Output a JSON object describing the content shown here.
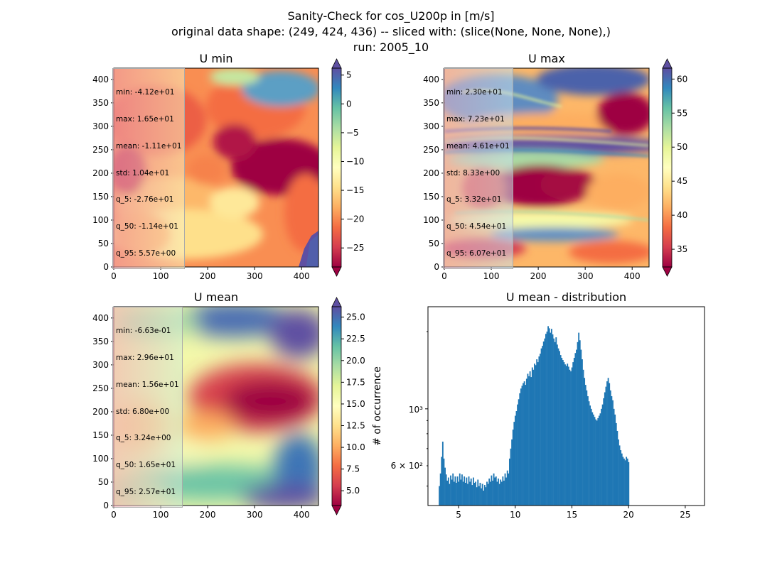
{
  "figure": {
    "suptitle_lines": [
      "Sanity-Check for cos_U200p in [m/s]",
      "original data shape: (249, 424, 436) -- sliced with: (slice(None, None, None),)",
      "run: 2005_10"
    ]
  },
  "chart_data": [
    {
      "type": "heatmap",
      "title": "U min",
      "x_ticks": [
        0,
        100,
        200,
        300,
        400
      ],
      "y_ticks": [
        0,
        50,
        100,
        150,
        200,
        250,
        300,
        350,
        400
      ],
      "xlim": [
        0,
        436
      ],
      "ylim": [
        0,
        424
      ],
      "colormap": "Spectral",
      "colorbar": {
        "range": [
          -28.3,
          6.2
        ],
        "ticks": [
          -25,
          -20,
          -15,
          -10,
          -5,
          0,
          5
        ],
        "tick_labels": [
          "−25",
          "−20",
          "−15",
          "−10",
          "−5",
          "0",
          "5"
        ],
        "extend": "both"
      },
      "stats": [
        "min: -4.12e+01",
        "max: 1.65e+01",
        "mean: -1.11e+01",
        "std: 1.04e+01",
        "q_5: -2.76e+01",
        "q_50: -1.14e+01",
        "q_95: 5.57e+00"
      ]
    },
    {
      "type": "heatmap",
      "title": "U max",
      "x_ticks": [
        0,
        100,
        200,
        300,
        400
      ],
      "y_ticks": [
        0,
        50,
        100,
        150,
        200,
        250,
        300,
        350,
        400
      ],
      "xlim": [
        0,
        436
      ],
      "ylim": [
        0,
        424
      ],
      "colormap": "Spectral",
      "colorbar": {
        "range": [
          32.4,
          61.6
        ],
        "ticks": [
          35,
          40,
          45,
          50,
          55,
          60
        ],
        "tick_labels": [
          "35",
          "40",
          "45",
          "50",
          "55",
          "60"
        ],
        "extend": "both"
      },
      "stats": [
        "min: 2.30e+01",
        "max: 7.23e+01",
        "mean: 4.61e+01",
        "std: 8.33e+00",
        "q_5: 3.32e+01",
        "q_50: 4.54e+01",
        "q_95: 6.07e+01"
      ]
    },
    {
      "type": "heatmap",
      "title": "U mean",
      "x_ticks": [
        0,
        100,
        200,
        300,
        400
      ],
      "y_ticks": [
        0,
        50,
        100,
        150,
        200,
        250,
        300,
        350,
        400
      ],
      "xlim": [
        0,
        436
      ],
      "ylim": [
        0,
        424
      ],
      "colormap": "Spectral",
      "colorbar": {
        "range": [
          3.3,
          26.2
        ],
        "ticks": [
          5.0,
          7.5,
          10.0,
          12.5,
          15.0,
          17.5,
          20.0,
          22.5,
          25.0
        ],
        "tick_labels": [
          "5.0",
          "7.5",
          "10.0",
          "12.5",
          "15.0",
          "17.5",
          "20.0",
          "22.5",
          "25.0"
        ],
        "extend": "both"
      },
      "stats": [
        "min: -6.63e-01",
        "max: 2.96e+01",
        "mean: 1.56e+01",
        "std: 6.80e+00",
        "q_5: 3.24e+00",
        "q_50: 1.65e+01",
        "q_95: 2.57e+01"
      ]
    },
    {
      "type": "bar",
      "title": "U mean - distribution",
      "ylabel": "# of occurrence",
      "y_scale": "log",
      "xlim": [
        2.3,
        26.7
      ],
      "ylim": [
        420,
        2500
      ],
      "x_ticks": [
        5,
        10,
        15,
        20,
        25
      ],
      "y_major_ticks": [
        1000
      ],
      "y_major_labels": [
        "10³"
      ],
      "y_minor_ticks": [
        500,
        600,
        700,
        800,
        900,
        2000
      ],
      "y_minor_labels": [
        "",
        "6 × 10²",
        "",
        "",
        "",
        ""
      ],
      "bin_start": 3.25,
      "bin_width": 0.1,
      "color": "#1f77b4",
      "counts": [
        500,
        560,
        650,
        745,
        640,
        590,
        555,
        525,
        540,
        510,
        550,
        530,
        560,
        520,
        545,
        515,
        545,
        520,
        560,
        530,
        555,
        520,
        545,
        515,
        540,
        510,
        545,
        520,
        535,
        505,
        540,
        515,
        520,
        495,
        530,
        500,
        515,
        490,
        510,
        480,
        505,
        495,
        520,
        510,
        535,
        520,
        550,
        525,
        560,
        540,
        545,
        520,
        535,
        510,
        530,
        520,
        545,
        525,
        560,
        540,
        575,
        560,
        640,
        700,
        760,
        830,
        890,
        940,
        980,
        1040,
        1090,
        1150,
        1200,
        1230,
        1260,
        1280,
        1240,
        1310,
        1370,
        1340,
        1400,
        1330,
        1450,
        1420,
        1500,
        1480,
        1560,
        1520,
        1600,
        1640,
        1720,
        1760,
        1830,
        1880,
        1960,
        2000,
        2100,
        2060,
        1980,
        2050,
        1950,
        1880,
        1820,
        1900,
        1780,
        1720,
        1680,
        1620,
        1580,
        1550,
        1520,
        1490,
        1470,
        1500,
        1460,
        1420,
        1400,
        1450,
        1520,
        1580,
        1650,
        1700,
        1820,
        1980,
        1850,
        1700,
        1560,
        1420,
        1320,
        1240,
        1180,
        1120,
        1070,
        1030,
        1000,
        970,
        950,
        930,
        910,
        900,
        920,
        940,
        960,
        1000,
        1040,
        1100,
        1160,
        1220,
        1280,
        1320,
        1260,
        1180,
        1120,
        1080,
        1000,
        950,
        880,
        820,
        760,
        720,
        690,
        670,
        650,
        640,
        630,
        650,
        640,
        620
      ]
    }
  ]
}
